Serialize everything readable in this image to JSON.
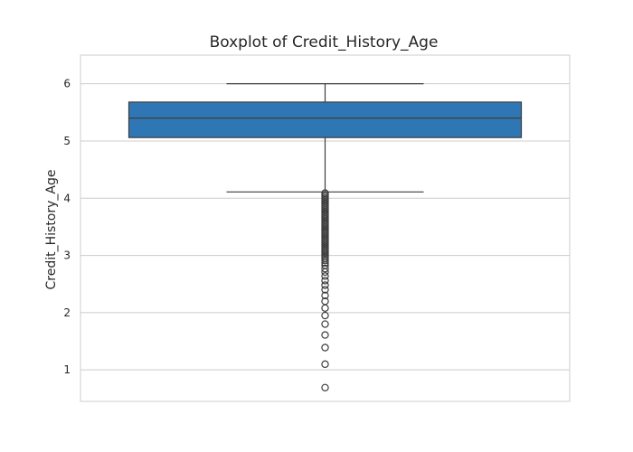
{
  "chart_data": {
    "type": "box",
    "title": "Boxplot of Credit_History_Age",
    "xlabel": "",
    "ylabel": "Credit_History_Age",
    "ylim": [
      0.45,
      6.5
    ],
    "yticks": [
      1,
      2,
      3,
      4,
      5,
      6
    ],
    "grid": true,
    "color": "#2f77b4",
    "edge_color": "#3d3d3d",
    "box": {
      "whisker_low": 4.11,
      "q1": 5.06,
      "median": 5.4,
      "q3": 5.68,
      "whisker_high": 6.0
    },
    "outliers": [
      4.09,
      4.06,
      4.03,
      4.0,
      3.97,
      3.94,
      3.91,
      3.88,
      3.85,
      3.82,
      3.79,
      3.76,
      3.73,
      3.7,
      3.67,
      3.64,
      3.61,
      3.58,
      3.55,
      3.52,
      3.49,
      3.46,
      3.43,
      3.4,
      3.37,
      3.34,
      3.31,
      3.28,
      3.25,
      3.22,
      3.19,
      3.16,
      3.13,
      3.1,
      3.07,
      3.04,
      3.01,
      2.98,
      2.95,
      2.91,
      2.87,
      2.83,
      2.77,
      2.71,
      2.64,
      2.56,
      2.48,
      2.4,
      2.3,
      2.2,
      2.08,
      1.95,
      1.8,
      1.61,
      1.39,
      1.1,
      0.69
    ]
  }
}
